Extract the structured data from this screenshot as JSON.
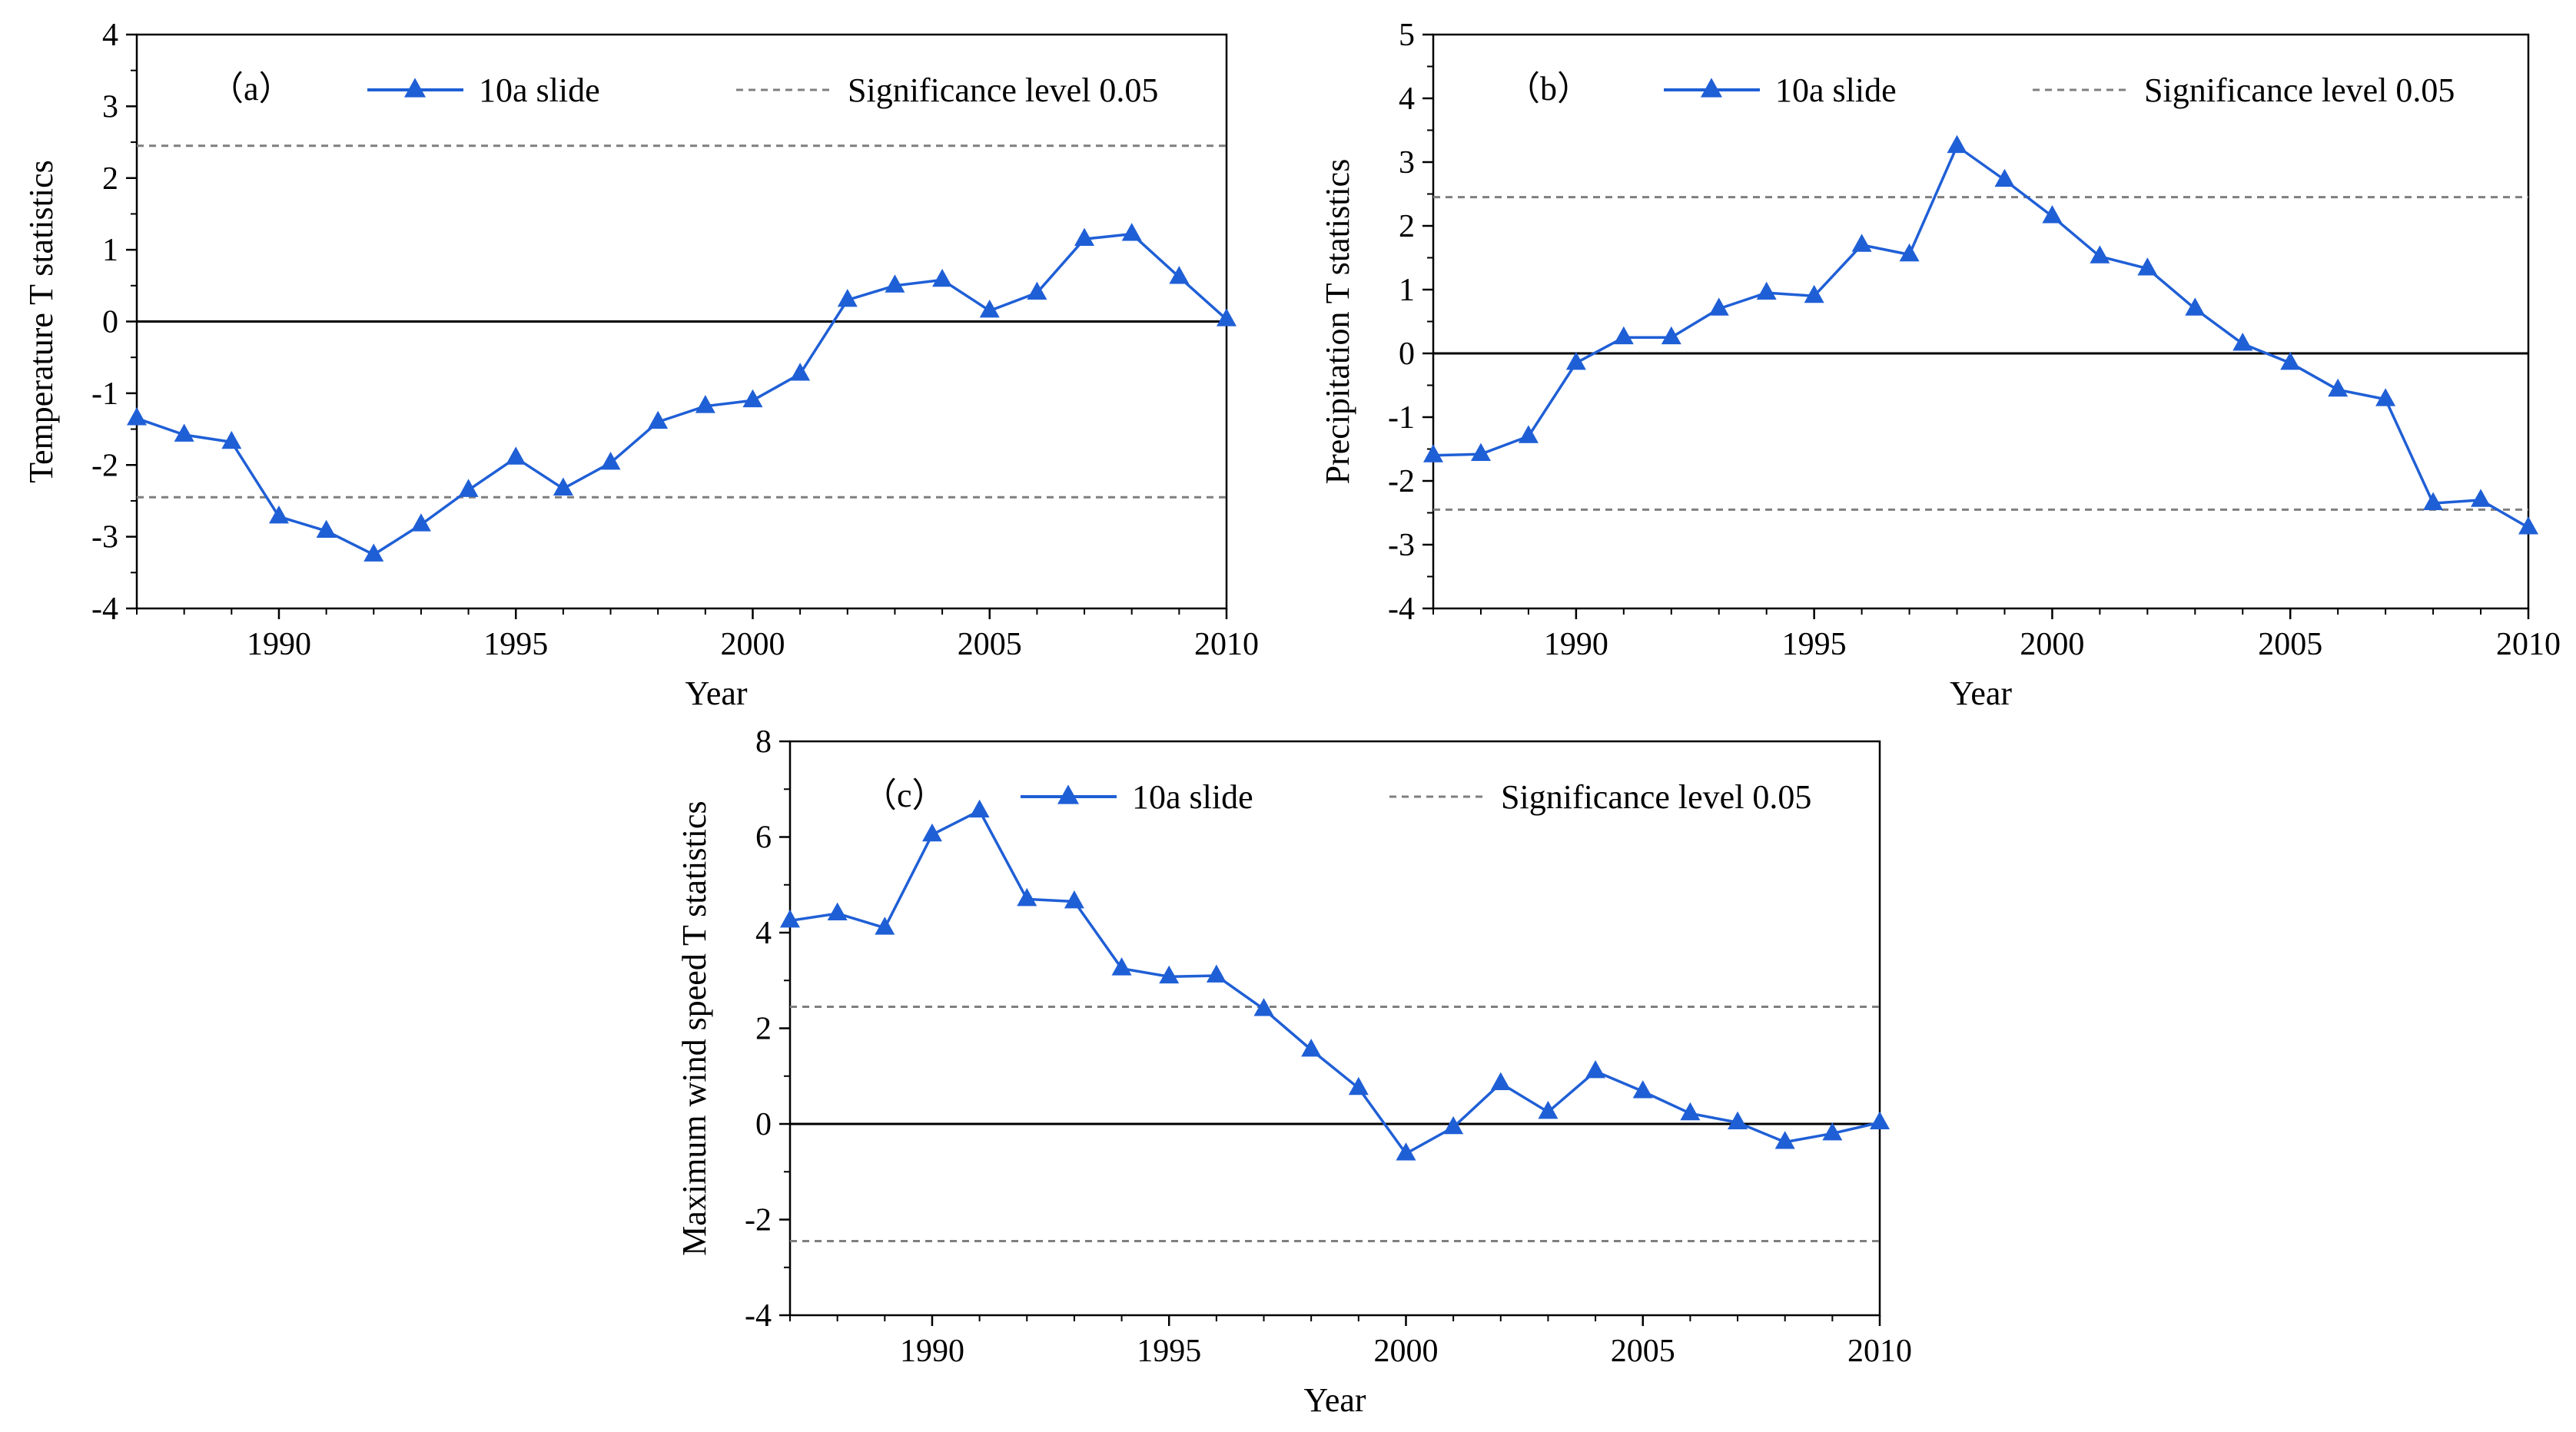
{
  "chart_data": [
    {
      "type": "line",
      "panel_label": "（a）",
      "xlabel": "Year",
      "ylabel": "Temperature T statistics",
      "xlim": [
        1987,
        2010
      ],
      "ylim": [
        -4,
        4
      ],
      "xticks": [
        1990,
        1995,
        2000,
        2005,
        2010
      ],
      "xtick_labels": [
        "1990",
        "1995",
        "2000",
        "2005",
        "2010"
      ],
      "yticks": [
        -4,
        -3,
        -2,
        -1,
        0,
        1,
        2,
        3,
        4
      ],
      "ytick_labels": [
        "-4",
        "-3",
        "-2",
        "-1",
        "0",
        "1",
        "2",
        "3",
        "4"
      ],
      "legend": [
        "10a slide",
        "Significance level 0.05"
      ],
      "significance_level": 2.45,
      "series": [
        {
          "name": "10a slide",
          "x": [
            1987,
            1988,
            1989,
            1990,
            1991,
            1992,
            1993,
            1994,
            1995,
            1996,
            1997,
            1998,
            1999,
            2000,
            2001,
            2002,
            2003,
            2004,
            2005,
            2006,
            2007,
            2008,
            2009,
            2010
          ],
          "y": [
            -1.35,
            -1.58,
            -1.68,
            -2.72,
            -2.92,
            -3.25,
            -2.83,
            -2.35,
            -1.9,
            -2.33,
            -1.97,
            -1.4,
            -1.18,
            -1.1,
            -0.73,
            0.3,
            0.5,
            0.58,
            0.15,
            0.4,
            1.15,
            1.22,
            0.62,
            0.03
          ]
        }
      ]
    },
    {
      "type": "line",
      "panel_label": "（b）",
      "xlabel": "Year",
      "ylabel": "Precipitation T statistics",
      "xlim": [
        1987,
        2010
      ],
      "ylim": [
        -4,
        5
      ],
      "xticks": [
        1990,
        1995,
        2000,
        2005,
        2010
      ],
      "xtick_labels": [
        "1990",
        "1995",
        "2000",
        "2005",
        "2010"
      ],
      "yticks": [
        -4,
        -3,
        -2,
        -1,
        0,
        1,
        2,
        3,
        4,
        5
      ],
      "ytick_labels": [
        "-4",
        "-3",
        "-2",
        "-1",
        "0",
        "1",
        "2",
        "3",
        "4",
        "5"
      ],
      "legend": [
        "10a slide",
        "Significance level 0.05"
      ],
      "significance_level": 2.45,
      "series": [
        {
          "name": "10a slide",
          "x": [
            1987,
            1988,
            1989,
            1990,
            1991,
            1992,
            1993,
            1994,
            1995,
            1996,
            1997,
            1998,
            1999,
            2000,
            2001,
            2002,
            2003,
            2004,
            2005,
            2006,
            2007,
            2008,
            2009,
            2010
          ],
          "y": [
            -1.6,
            -1.58,
            -1.3,
            -0.15,
            0.25,
            0.25,
            0.7,
            0.95,
            0.9,
            1.7,
            1.55,
            3.25,
            2.72,
            2.15,
            1.52,
            1.33,
            0.7,
            0.15,
            -0.15,
            -0.57,
            -0.72,
            -2.35,
            -2.3,
            -2.73
          ]
        }
      ]
    },
    {
      "type": "line",
      "panel_label": "（c）",
      "xlabel": "Year",
      "ylabel": "Maximum wind speed T statistics",
      "xlim": [
        1987,
        2010
      ],
      "ylim": [
        -4,
        8
      ],
      "xticks": [
        1990,
        1995,
        2000,
        2005,
        2010
      ],
      "xtick_labels": [
        "1990",
        "1995",
        "2000",
        "2005",
        "2010"
      ],
      "yticks": [
        -4,
        -2,
        0,
        2,
        4,
        6,
        8
      ],
      "ytick_labels": [
        "-4",
        "-2",
        "0",
        "2",
        "4",
        "6",
        "8"
      ],
      "legend": [
        "10a slide",
        "Significance level 0.05"
      ],
      "significance_level": 2.45,
      "series": [
        {
          "name": "10a slide",
          "x": [
            1987,
            1988,
            1989,
            1990,
            1991,
            1992,
            1993,
            1994,
            1995,
            1996,
            1997,
            1998,
            1999,
            2000,
            2001,
            2002,
            2003,
            2004,
            2005,
            2006,
            2007,
            2008,
            2009,
            2010
          ],
          "y": [
            4.25,
            4.4,
            4.1,
            6.05,
            6.55,
            4.7,
            4.65,
            3.25,
            3.08,
            3.1,
            2.4,
            1.55,
            0.75,
            -0.62,
            -0.07,
            0.85,
            0.25,
            1.1,
            0.68,
            0.22,
            0.03,
            -0.38,
            -0.2,
            0.03
          ]
        }
      ]
    }
  ],
  "colors": {
    "series": "#1f5fd6",
    "significance": "#7f7f7f",
    "zero_line": "#000000",
    "axes": "#000000"
  }
}
